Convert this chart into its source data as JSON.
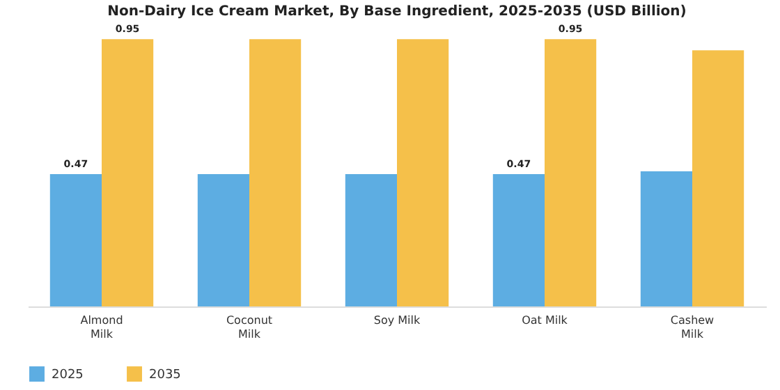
{
  "chart_data": {
    "type": "bar",
    "title": "Non-Dairy Ice Cream Market, By Base Ingredient, 2025-2035 (USD Billion)",
    "categories": [
      "Almond\nMilk",
      "Coconut\nMilk",
      "Soy Milk",
      "Oat Milk",
      "Cashew\nMilk"
    ],
    "series": [
      {
        "name": "2025",
        "color": "#5dade2",
        "values": [
          0.47,
          0.47,
          0.47,
          0.47,
          0.48
        ],
        "value_labels": [
          "0.47",
          null,
          null,
          "0.47",
          null
        ]
      },
      {
        "name": "2035",
        "color": "#f5c04a",
        "values": [
          0.95,
          0.95,
          0.95,
          0.95,
          0.91
        ],
        "value_labels": [
          "0.95",
          null,
          null,
          "0.95",
          null
        ]
      }
    ],
    "grid": false,
    "legend": "bottom",
    "tick_labels": "x"
  }
}
